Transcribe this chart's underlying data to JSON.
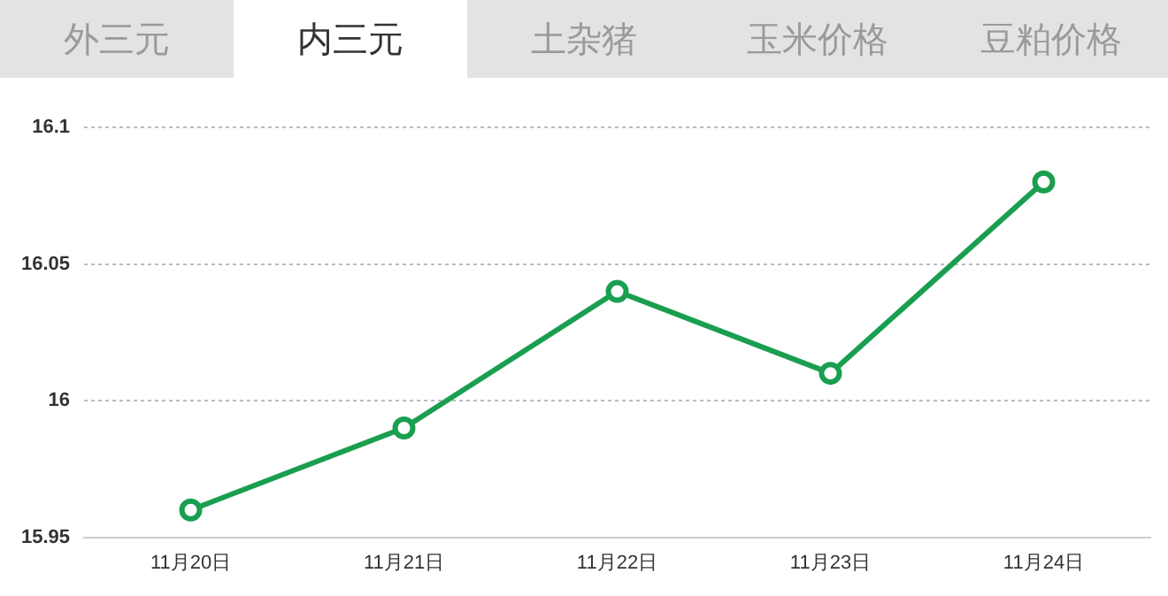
{
  "chart_data": {
    "type": "line",
    "title": "内三元",
    "annotations": [
      "外三元",
      "土杂猪",
      "玉米价格",
      "豆粕价格"
    ],
    "categories": [
      "11月20日",
      "11月21日",
      "11月22日",
      "11月23日",
      "11月24日"
    ],
    "series": [
      {
        "color": "#1a9e50",
        "values": [
          15.96,
          15.99,
          16.04,
          16.01,
          16.08
        ]
      }
    ],
    "ylim": [
      15.95,
      16.1
    ],
    "yticks": [
      15.95,
      {
        "value": 16,
        "label": "16"
      },
      16.05,
      16.1
    ],
    "grid": "y",
    "legend": false,
    "marker": "circle",
    "line_style": "solid"
  }
}
